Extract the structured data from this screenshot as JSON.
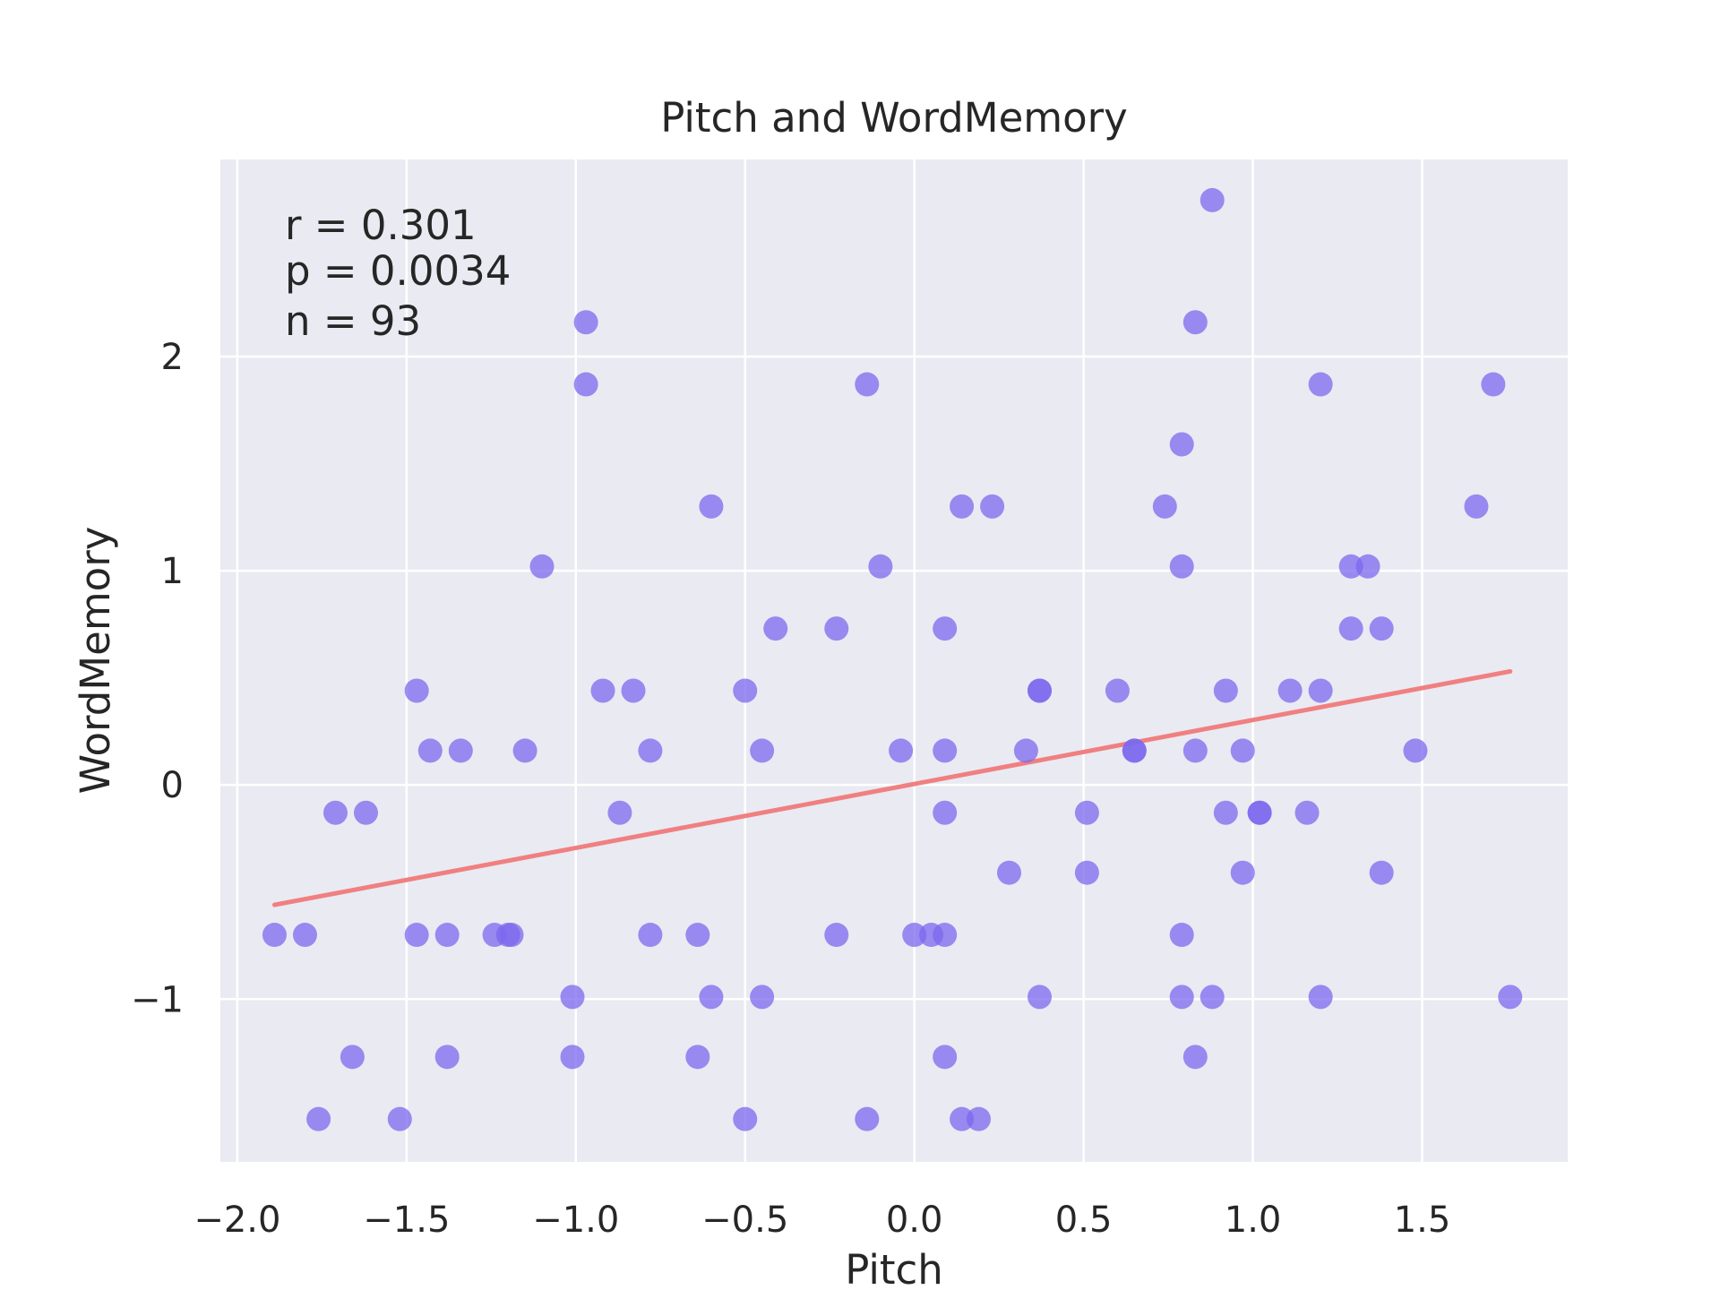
{
  "chart_data": {
    "type": "scatter",
    "title": "Pitch and WordMemory",
    "xlabel": "Pitch",
    "ylabel": "WordMemory",
    "xlim": [
      -2.05,
      1.93
    ],
    "ylim": [
      -1.76,
      2.92
    ],
    "xticks": [
      -2.0,
      -1.5,
      -1.0,
      -0.5,
      0.0,
      0.5,
      1.0,
      1.5
    ],
    "xtick_labels": [
      "−2.0",
      "−1.5",
      "−1.0",
      "−0.5",
      "0.0",
      "0.5",
      "1.0",
      "1.5"
    ],
    "yticks": [
      -1,
      0,
      1,
      2
    ],
    "ytick_labels": [
      "−1",
      "0",
      "1",
      "2"
    ],
    "grid": true,
    "background": "#eaeaf2",
    "point_color": "#7b68ee",
    "line_color": "#f08080",
    "annotations": [
      "r = 0.301",
      "p = 0.0034",
      "n = 93"
    ],
    "regression_line": {
      "x": [
        -1.89,
        1.76
      ],
      "y": [
        -0.56,
        0.53
      ]
    },
    "points": [
      {
        "x": -1.89,
        "y": -0.7
      },
      {
        "x": -1.8,
        "y": -0.7
      },
      {
        "x": -1.71,
        "y": -0.13
      },
      {
        "x": -1.62,
        "y": -0.13
      },
      {
        "x": -1.76,
        "y": -1.56
      },
      {
        "x": -1.66,
        "y": -1.27
      },
      {
        "x": -1.52,
        "y": -1.56
      },
      {
        "x": -1.47,
        "y": 0.44
      },
      {
        "x": -1.43,
        "y": 0.16
      },
      {
        "x": -1.34,
        "y": 0.16
      },
      {
        "x": -1.47,
        "y": -0.7
      },
      {
        "x": -1.38,
        "y": -0.7
      },
      {
        "x": -1.38,
        "y": -1.27
      },
      {
        "x": -1.24,
        "y": -0.7
      },
      {
        "x": -1.2,
        "y": -0.7
      },
      {
        "x": -1.19,
        "y": -0.7
      },
      {
        "x": -1.15,
        "y": 0.16
      },
      {
        "x": -1.1,
        "y": 1.02
      },
      {
        "x": -1.01,
        "y": -0.99
      },
      {
        "x": -1.01,
        "y": -1.27
      },
      {
        "x": -0.97,
        "y": 2.16
      },
      {
        "x": -0.97,
        "y": 1.87
      },
      {
        "x": -0.92,
        "y": 0.44
      },
      {
        "x": -0.83,
        "y": 0.44
      },
      {
        "x": -0.87,
        "y": -0.13
      },
      {
        "x": -0.78,
        "y": 0.16
      },
      {
        "x": -0.78,
        "y": -0.7
      },
      {
        "x": -0.64,
        "y": -0.7
      },
      {
        "x": -0.6,
        "y": 1.3
      },
      {
        "x": -0.6,
        "y": -0.99
      },
      {
        "x": -0.64,
        "y": -1.27
      },
      {
        "x": -0.5,
        "y": 0.44
      },
      {
        "x": -0.45,
        "y": 0.16
      },
      {
        "x": -0.41,
        "y": 0.73
      },
      {
        "x": -0.45,
        "y": -0.99
      },
      {
        "x": -0.5,
        "y": -1.56
      },
      {
        "x": -0.23,
        "y": 0.73
      },
      {
        "x": -0.23,
        "y": -0.7
      },
      {
        "x": -0.14,
        "y": 1.87
      },
      {
        "x": -0.1,
        "y": 1.02
      },
      {
        "x": -0.14,
        "y": -1.56
      },
      {
        "x": -0.04,
        "y": 0.16
      },
      {
        "x": 0.0,
        "y": -0.7
      },
      {
        "x": 0.05,
        "y": -0.7
      },
      {
        "x": 0.09,
        "y": -0.7
      },
      {
        "x": 0.09,
        "y": 0.73
      },
      {
        "x": 0.09,
        "y": 0.16
      },
      {
        "x": 0.09,
        "y": -0.13
      },
      {
        "x": 0.09,
        "y": -1.27
      },
      {
        "x": 0.14,
        "y": 1.3
      },
      {
        "x": 0.14,
        "y": -1.56
      },
      {
        "x": 0.19,
        "y": -1.56
      },
      {
        "x": 0.23,
        "y": 1.3
      },
      {
        "x": 0.28,
        "y": -0.41
      },
      {
        "x": 0.33,
        "y": 0.16
      },
      {
        "x": 0.37,
        "y": 0.44
      },
      {
        "x": 0.37,
        "y": 0.44
      },
      {
        "x": 0.37,
        "y": -0.99
      },
      {
        "x": 0.51,
        "y": -0.13
      },
      {
        "x": 0.51,
        "y": -0.41
      },
      {
        "x": 0.6,
        "y": 0.44
      },
      {
        "x": 0.65,
        "y": 0.16
      },
      {
        "x": 0.65,
        "y": 0.16
      },
      {
        "x": 0.74,
        "y": 1.3
      },
      {
        "x": 0.79,
        "y": 1.59
      },
      {
        "x": 0.79,
        "y": 1.02
      },
      {
        "x": 0.79,
        "y": -0.7
      },
      {
        "x": 0.79,
        "y": -0.99
      },
      {
        "x": 0.83,
        "y": 2.16
      },
      {
        "x": 0.83,
        "y": 0.16
      },
      {
        "x": 0.83,
        "y": -1.27
      },
      {
        "x": 0.88,
        "y": 2.73
      },
      {
        "x": 0.88,
        "y": -0.99
      },
      {
        "x": 0.92,
        "y": 0.44
      },
      {
        "x": 0.92,
        "y": -0.13
      },
      {
        "x": 0.97,
        "y": 0.16
      },
      {
        "x": 0.97,
        "y": -0.41
      },
      {
        "x": 1.02,
        "y": -0.13
      },
      {
        "x": 1.02,
        "y": -0.13
      },
      {
        "x": 1.11,
        "y": 0.44
      },
      {
        "x": 1.16,
        "y": -0.13
      },
      {
        "x": 1.2,
        "y": 1.87
      },
      {
        "x": 1.2,
        "y": 0.44
      },
      {
        "x": 1.2,
        "y": -0.99
      },
      {
        "x": 1.29,
        "y": 1.02
      },
      {
        "x": 1.34,
        "y": 1.02
      },
      {
        "x": 1.29,
        "y": 0.73
      },
      {
        "x": 1.38,
        "y": 0.73
      },
      {
        "x": 1.38,
        "y": -0.41
      },
      {
        "x": 1.48,
        "y": 0.16
      },
      {
        "x": 1.66,
        "y": 1.3
      },
      {
        "x": 1.71,
        "y": 1.87
      },
      {
        "x": 1.76,
        "y": -0.99
      }
    ]
  }
}
